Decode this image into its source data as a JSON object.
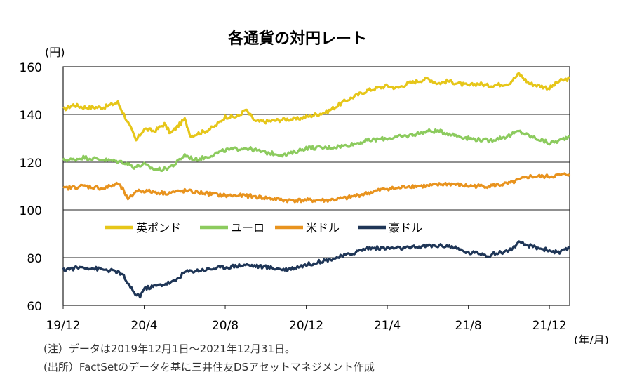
{
  "chart_data": {
    "type": "line",
    "title": "各通貨の対円レート",
    "ylabel": "(円)",
    "xlabel": "(年/月)",
    "ylim": [
      60,
      160
    ],
    "yticks": [
      60,
      80,
      100,
      120,
      140,
      160
    ],
    "x_start": "2019/12/01",
    "x_end": "2021/12/31",
    "xticks": [
      {
        "label": "19/12",
        "m": 0
      },
      {
        "label": "20/4",
        "m": 4
      },
      {
        "label": "20/8",
        "m": 8
      },
      {
        "label": "20/12",
        "m": 12
      },
      {
        "label": "21/4",
        "m": 16
      },
      {
        "label": "21/8",
        "m": 20
      },
      {
        "label": "21/12",
        "m": 24
      }
    ],
    "grid": true,
    "legend_position": "middle-left",
    "series": [
      {
        "name": "英ポンド",
        "color": "#E6C619",
        "points": [
          [
            0,
            142
          ],
          [
            0.5,
            144
          ],
          [
            1,
            143
          ],
          [
            2,
            143
          ],
          [
            2.7,
            145
          ],
          [
            3,
            140
          ],
          [
            3.4,
            133
          ],
          [
            3.6,
            129
          ],
          [
            4,
            134
          ],
          [
            4.5,
            133
          ],
          [
            5,
            136
          ],
          [
            5.3,
            132
          ],
          [
            6,
            138
          ],
          [
            6.3,
            131
          ],
          [
            7,
            133
          ],
          [
            7.5,
            135
          ],
          [
            8,
            139
          ],
          [
            8.6,
            139
          ],
          [
            9,
            142
          ],
          [
            9.5,
            137
          ],
          [
            10,
            137
          ],
          [
            11,
            138
          ],
          [
            11.5,
            138
          ],
          [
            12,
            139
          ],
          [
            13,
            141
          ],
          [
            14,
            146
          ],
          [
            15,
            150
          ],
          [
            16,
            152
          ],
          [
            16.5,
            151
          ],
          [
            17,
            153
          ],
          [
            17.5,
            154
          ],
          [
            18,
            155
          ],
          [
            18.5,
            153
          ],
          [
            19,
            154
          ],
          [
            20,
            152
          ],
          [
            20.5,
            153
          ],
          [
            21,
            152
          ],
          [
            22,
            153
          ],
          [
            22.5,
            157
          ],
          [
            23,
            153
          ],
          [
            24,
            151
          ],
          [
            24.5,
            154
          ],
          [
            25,
            155
          ]
        ]
      },
      {
        "name": "ユーロ",
        "color": "#8CCB5E",
        "points": [
          [
            0,
            121
          ],
          [
            0.5,
            121
          ],
          [
            1,
            122
          ],
          [
            2,
            121
          ],
          [
            3,
            120
          ],
          [
            3.5,
            118
          ],
          [
            4,
            119
          ],
          [
            4.5,
            117
          ],
          [
            5,
            117
          ],
          [
            5.5,
            119
          ],
          [
            6,
            123
          ],
          [
            6.5,
            121
          ],
          [
            7,
            122
          ],
          [
            8,
            125
          ],
          [
            9,
            126
          ],
          [
            10,
            124
          ],
          [
            11,
            123
          ],
          [
            12,
            126
          ],
          [
            13,
            126
          ],
          [
            14,
            127
          ],
          [
            15,
            129
          ],
          [
            16,
            130
          ],
          [
            17,
            131
          ],
          [
            18,
            133
          ],
          [
            18.5,
            133
          ],
          [
            19,
            132
          ],
          [
            20,
            130
          ],
          [
            21,
            129
          ],
          [
            22,
            131
          ],
          [
            22.5,
            133
          ],
          [
            23,
            131
          ],
          [
            24,
            128
          ],
          [
            24.5,
            129
          ],
          [
            25,
            131
          ]
        ]
      },
      {
        "name": "米ドル",
        "color": "#E8931E",
        "points": [
          [
            0,
            109
          ],
          [
            1,
            110
          ],
          [
            2,
            109
          ],
          [
            2.7,
            111
          ],
          [
            3,
            108
          ],
          [
            3.2,
            104
          ],
          [
            3.6,
            108
          ],
          [
            4,
            108
          ],
          [
            5,
            107
          ],
          [
            6,
            108
          ],
          [
            7,
            107
          ],
          [
            8,
            106
          ],
          [
            9,
            106
          ],
          [
            10,
            105
          ],
          [
            11,
            104
          ],
          [
            12,
            104
          ],
          [
            13,
            104
          ],
          [
            14,
            105
          ],
          [
            15,
            107
          ],
          [
            16,
            109
          ],
          [
            16.5,
            109
          ],
          [
            17,
            110
          ],
          [
            18,
            110
          ],
          [
            19,
            111
          ],
          [
            20,
            110
          ],
          [
            21,
            110
          ],
          [
            22,
            111
          ],
          [
            23,
            114
          ],
          [
            24,
            114
          ],
          [
            25,
            115
          ]
        ]
      },
      {
        "name": "豪ドル",
        "color": "#1F3657",
        "points": [
          [
            0,
            75
          ],
          [
            1,
            76
          ],
          [
            2,
            75
          ],
          [
            2.7,
            74
          ],
          [
            3,
            72
          ],
          [
            3.5,
            65
          ],
          [
            3.8,
            64
          ],
          [
            4,
            67
          ],
          [
            5,
            69
          ],
          [
            5.5,
            70
          ],
          [
            6,
            74
          ],
          [
            7,
            75
          ],
          [
            8,
            76
          ],
          [
            9,
            77
          ],
          [
            10,
            76
          ],
          [
            11,
            75
          ],
          [
            12,
            77
          ],
          [
            13,
            79
          ],
          [
            14,
            81
          ],
          [
            15,
            84
          ],
          [
            16,
            84
          ],
          [
            17,
            84
          ],
          [
            18,
            85
          ],
          [
            19,
            85
          ],
          [
            20,
            82
          ],
          [
            20.5,
            82
          ],
          [
            21,
            81
          ],
          [
            22,
            83
          ],
          [
            22.5,
            86
          ],
          [
            23,
            85
          ],
          [
            24,
            83
          ],
          [
            24.5,
            82
          ],
          [
            25,
            84
          ]
        ]
      }
    ]
  },
  "notes": {
    "note": "(注）データは2019年12月1日～2021年12月31日。",
    "source": "(出所）FactSetのデータを基に三井住友DSアセットマネジメント作成"
  }
}
